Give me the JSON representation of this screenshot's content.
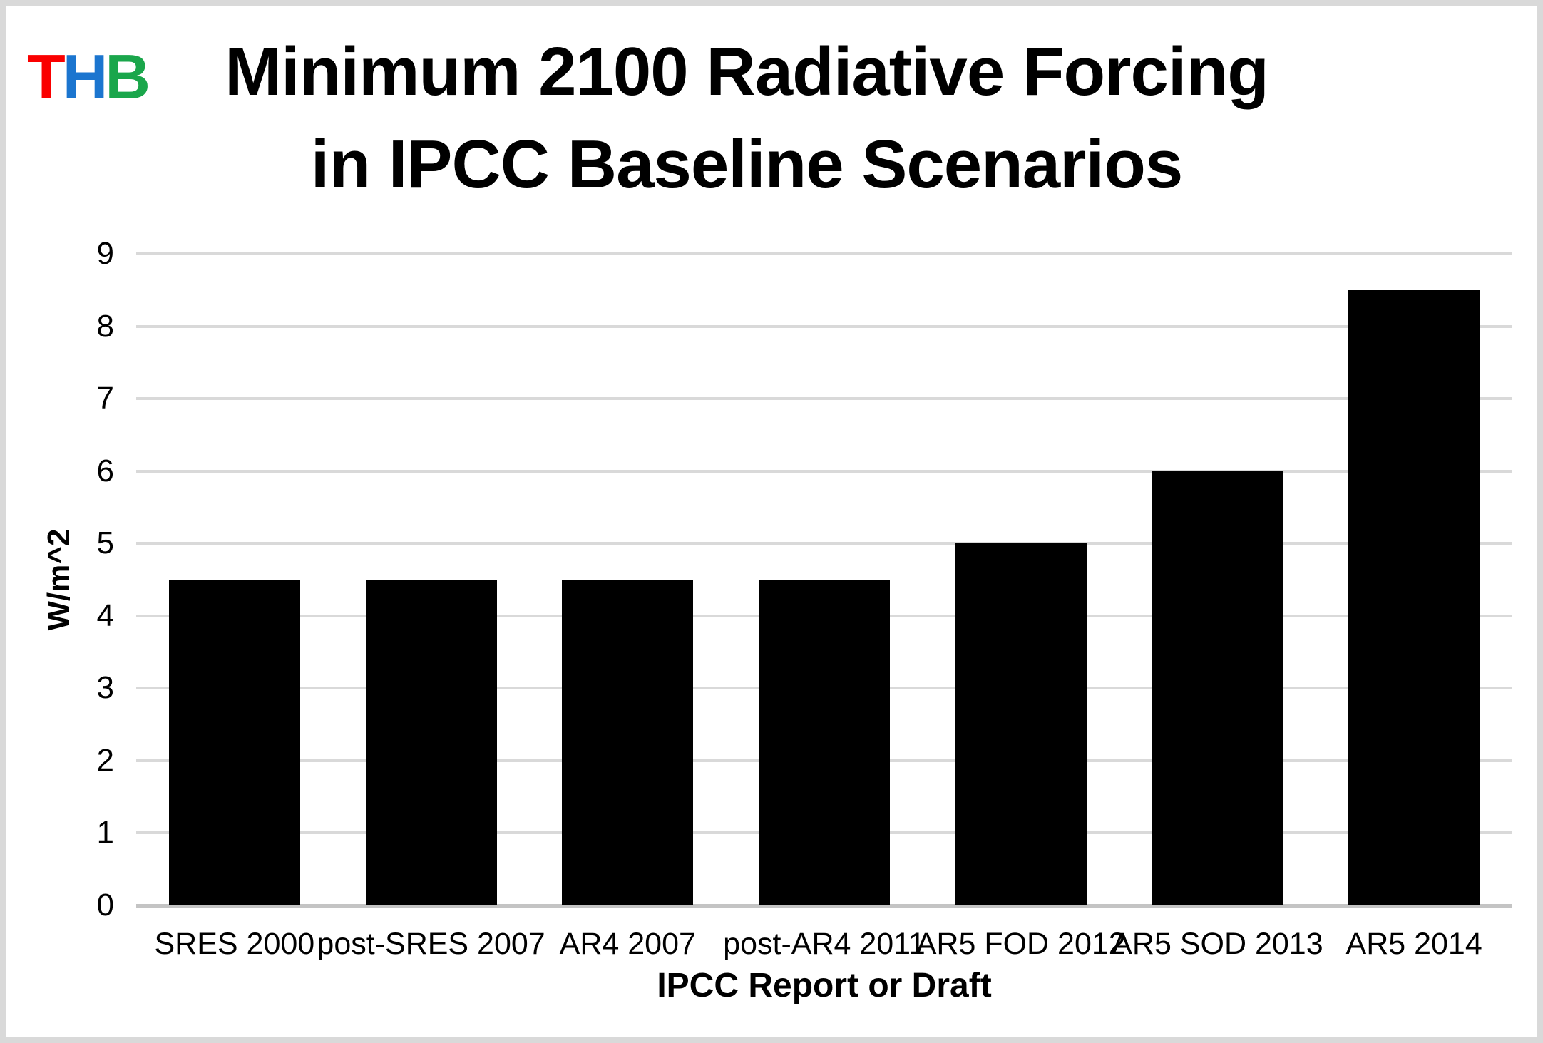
{
  "logo": {
    "letters": [
      {
        "char": "T",
        "color": "#fa0000"
      },
      {
        "char": "H",
        "color": "#1b75cf"
      },
      {
        "char": "B",
        "color": "#1aa64b"
      }
    ]
  },
  "title": {
    "line1": "Minimum 2100 Radiative Forcing",
    "line2": "in IPCC Baseline Scenarios"
  },
  "chart_data": {
    "type": "bar",
    "title": "Minimum 2100 Radiative Forcing in IPCC Baseline Scenarios",
    "categories": [
      "SRES 2000",
      "post-SRES 2007",
      "AR4 2007",
      "post-AR4 2011",
      "AR5 FOD 2012",
      "AR5 SOD 2013",
      "AR5 2014"
    ],
    "values": [
      4.5,
      4.5,
      4.5,
      4.5,
      5,
      6,
      8.5
    ],
    "xlabel": "IPCC Report or Draft",
    "ylabel": "W/m^2",
    "ylim": [
      0,
      9
    ],
    "ytick_step": 1,
    "yticks": [
      0,
      1,
      2,
      3,
      4,
      5,
      6,
      7,
      8,
      9
    ],
    "grid": true,
    "legend_position": "none",
    "bar_color": "#000000",
    "gridline_color": "#d9d9d9",
    "axis_line_color": "#c4c4c4"
  }
}
